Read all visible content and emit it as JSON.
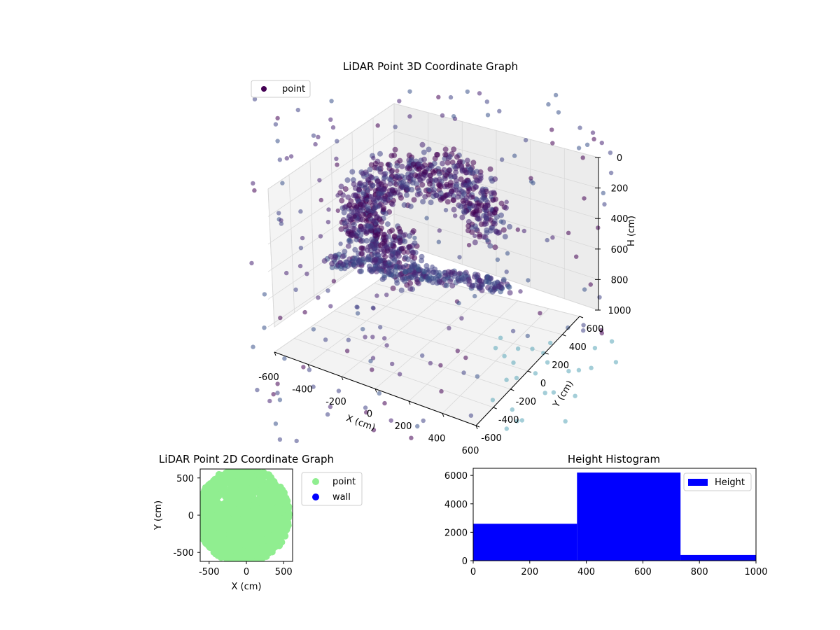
{
  "chart_data": [
    {
      "type": "scatter",
      "title": "LiDAR Point 3D Coordinate Graph",
      "xlabel": "X (cm)",
      "ylabel": "Y (cm)",
      "zlabel": "H (cm)",
      "legend": [
        "point"
      ],
      "legend_placement": "top-left",
      "xticks": [
        "-600",
        "-400",
        "-200",
        "0",
        "200",
        "400",
        "600"
      ],
      "yticks": [
        "-600",
        "-400",
        "-200",
        "0",
        "200",
        "400",
        "600"
      ],
      "zticks": [
        "0",
        "200",
        "400",
        "600",
        "800",
        "1000"
      ],
      "xlim": [
        -600,
        600
      ],
      "ylim": [
        -600,
        600
      ],
      "zlim": [
        0,
        1000
      ],
      "z_axis_inverted": true,
      "grid": true,
      "colormap": "viridis (by height)",
      "colors": {
        "point_dark": "#440154",
        "point_mid": "#3b528b",
        "point_light": "#5aa5b8",
        "pane": "#f2f2f2"
      }
    },
    {
      "type": "scatter",
      "title": "LiDAR Point 2D Coordinate Graph",
      "xlabel": "X (cm)",
      "ylabel": "Y (cm)",
      "xticks": [
        "-500",
        "0",
        "500"
      ],
      "yticks": [
        "-500",
        "0",
        "500"
      ],
      "xlim": [
        -620,
        620
      ],
      "ylim": [
        -620,
        620
      ],
      "series": [
        {
          "name": "point",
          "color": "#90ee90"
        },
        {
          "name": "wall",
          "color": "#0000ff"
        }
      ],
      "legend_placement": "outside-right",
      "grid": false
    },
    {
      "type": "bar",
      "title": "Height Histogram",
      "bins": [
        [
          0,
          367
        ],
        [
          367,
          733
        ],
        [
          733,
          1000
        ]
      ],
      "values": [
        2600,
        6200,
        400
      ],
      "series": [
        {
          "name": "Height",
          "color": "#0000ff"
        }
      ],
      "xticks": [
        "0",
        "200",
        "400",
        "600",
        "800",
        "1000"
      ],
      "yticks": [
        "0",
        "2000",
        "4000",
        "6000"
      ],
      "xlim": [
        0,
        1000
      ],
      "ylim": [
        0,
        6500
      ],
      "legend_placement": "top-right",
      "grid": false
    }
  ]
}
